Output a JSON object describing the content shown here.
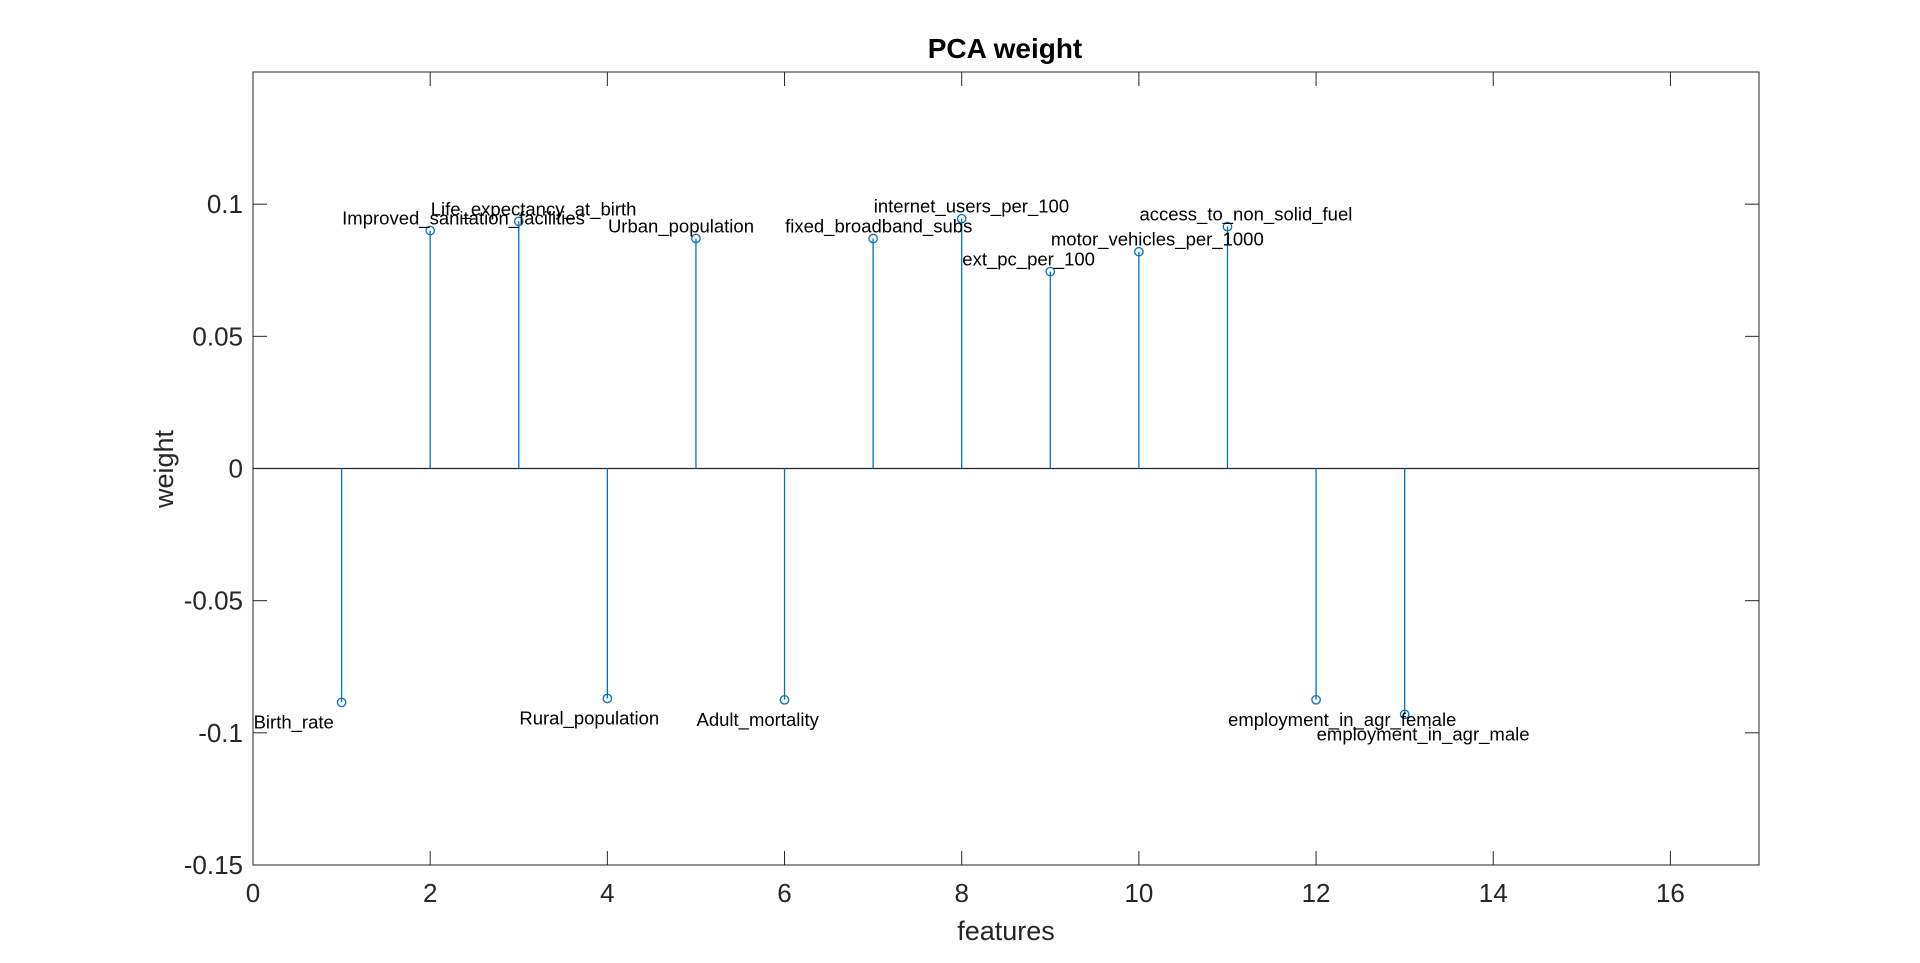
{
  "colors": {
    "stem": "#0072BD",
    "axis": "#262626",
    "background": "#ffffff"
  },
  "chart_data": {
    "type": "stem",
    "title": "PCA weight",
    "xlabel": "features",
    "ylabel": "weight",
    "xlim": [
      0,
      17
    ],
    "ylim": [
      -0.15,
      0.15
    ],
    "x_ticks": [
      "0",
      "2",
      "4",
      "6",
      "8",
      "10",
      "12",
      "14",
      "16"
    ],
    "y_ticks": [
      "-0.15",
      "-0.1",
      "-0.05",
      "0",
      "0.05",
      "0.1"
    ],
    "grid": false,
    "marker": "circle",
    "points": [
      {
        "x": 1,
        "y": -0.0885,
        "label": "Birth_rate"
      },
      {
        "x": 2,
        "y": 0.09,
        "label": "Improved_sanitation_facilities"
      },
      {
        "x": 3,
        "y": 0.0935,
        "label": "Life_expectancy_at_birth"
      },
      {
        "x": 4,
        "y": -0.087,
        "label": "Rural_population"
      },
      {
        "x": 5,
        "y": 0.087,
        "label": "Urban_population"
      },
      {
        "x": 6,
        "y": -0.0875,
        "label": "Adult_mortality"
      },
      {
        "x": 7,
        "y": 0.087,
        "label": "fixed_broadband_subs"
      },
      {
        "x": 8,
        "y": 0.0945,
        "label": "internet_users_per_100"
      },
      {
        "x": 9,
        "y": 0.0745,
        "label": "ext_pc_per_100"
      },
      {
        "x": 10,
        "y": 0.082,
        "label": "motor_vehicles_per_1000"
      },
      {
        "x": 11,
        "y": 0.0915,
        "label": "access_to_non_solid_fuel"
      },
      {
        "x": 12,
        "y": -0.0875,
        "label": "employment_in_agr_female"
      },
      {
        "x": 13,
        "y": -0.093,
        "label": "employment_in_agr_male"
      }
    ]
  }
}
